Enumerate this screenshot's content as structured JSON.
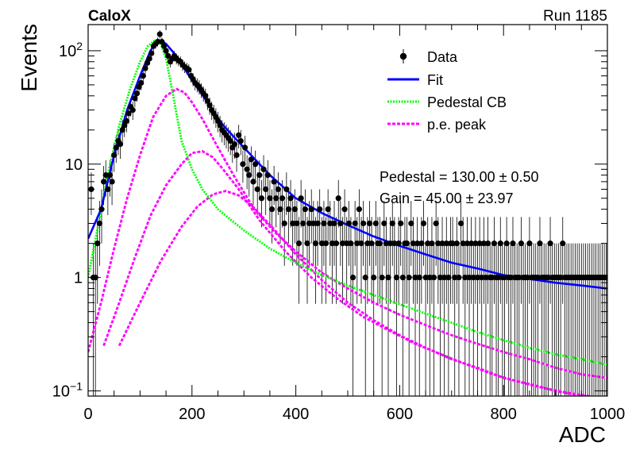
{
  "header": {
    "experiment": "CaloX",
    "run": "Run 1185"
  },
  "stats": {
    "pedestal": "Pedestal = 130.00 ± 0.50",
    "gain": "Gain = 45.00 ± 23.97"
  },
  "colors": {
    "data": "#000000",
    "fit": "#0000ff",
    "pedestal": "#00ff00",
    "pe": "#ff00ff"
  },
  "chart_data": {
    "type": "line",
    "xlabel": "ADC",
    "ylabel": "Events",
    "xlim": [
      0,
      1000
    ],
    "ylim": [
      0.09,
      170
    ],
    "yscale": "log",
    "x_ticks": [
      0,
      200,
      400,
      600,
      800,
      1000
    ],
    "y_ticks": [
      {
        "value": 0.1,
        "base": "10",
        "exp": "−1"
      },
      {
        "value": 1,
        "label": "1"
      },
      {
        "value": 10,
        "label": "10"
      },
      {
        "value": 100,
        "base": "10",
        "exp": "2"
      }
    ],
    "legend": {
      "position": "top-right",
      "entries": [
        {
          "label": "Data",
          "style": "marker"
        },
        {
          "label": "Fit",
          "style": "solid"
        },
        {
          "label": "Pedestal CB",
          "style": "dotted"
        },
        {
          "label": "p.e. peak",
          "style": "dashed"
        }
      ]
    },
    "data_points": [
      [
        6,
        6
      ],
      [
        10,
        1
      ],
      [
        14,
        1
      ],
      [
        18,
        2
      ],
      [
        22,
        3
      ],
      [
        26,
        4
      ],
      [
        30,
        7
      ],
      [
        34,
        8
      ],
      [
        38,
        6
      ],
      [
        42,
        8
      ],
      [
        46,
        7
      ],
      [
        50,
        12
      ],
      [
        54,
        14
      ],
      [
        58,
        16
      ],
      [
        62,
        15
      ],
      [
        66,
        20
      ],
      [
        70,
        22
      ],
      [
        74,
        24
      ],
      [
        78,
        28
      ],
      [
        82,
        32
      ],
      [
        86,
        30
      ],
      [
        90,
        38
      ],
      [
        94,
        42
      ],
      [
        98,
        48
      ],
      [
        102,
        52
      ],
      [
        106,
        60
      ],
      [
        110,
        70
      ],
      [
        114,
        78
      ],
      [
        118,
        85
      ],
      [
        122,
        95
      ],
      [
        126,
        110
      ],
      [
        130,
        115
      ],
      [
        134,
        120
      ],
      [
        138,
        140
      ],
      [
        142,
        120
      ],
      [
        146,
        110
      ],
      [
        150,
        100
      ],
      [
        154,
        90
      ],
      [
        158,
        80
      ],
      [
        162,
        85
      ],
      [
        166,
        90
      ],
      [
        170,
        85
      ],
      [
        174,
        82
      ],
      [
        178,
        80
      ],
      [
        182,
        75
      ],
      [
        186,
        72
      ],
      [
        190,
        70
      ],
      [
        194,
        68
      ],
      [
        198,
        60
      ],
      [
        202,
        56
      ],
      [
        206,
        52
      ],
      [
        210,
        50
      ],
      [
        214,
        48
      ],
      [
        218,
        45
      ],
      [
        222,
        42
      ],
      [
        226,
        40
      ],
      [
        230,
        36
      ],
      [
        234,
        33
      ],
      [
        238,
        30
      ],
      [
        242,
        28
      ],
      [
        246,
        26
      ],
      [
        250,
        24
      ],
      [
        254,
        22
      ],
      [
        258,
        20
      ],
      [
        262,
        19
      ],
      [
        266,
        18
      ],
      [
        270,
        17
      ],
      [
        274,
        16
      ],
      [
        278,
        14
      ],
      [
        282,
        15
      ],
      [
        286,
        12
      ],
      [
        290,
        18
      ],
      [
        294,
        16
      ],
      [
        298,
        10
      ],
      [
        302,
        14
      ],
      [
        306,
        9
      ],
      [
        310,
        8
      ],
      [
        314,
        11
      ],
      [
        318,
        7
      ],
      [
        322,
        10
      ],
      [
        326,
        6
      ],
      [
        330,
        8
      ],
      [
        334,
        5
      ],
      [
        338,
        9
      ],
      [
        342,
        6
      ],
      [
        346,
        8
      ],
      [
        350,
        5
      ],
      [
        354,
        4
      ],
      [
        358,
        7
      ],
      [
        362,
        5
      ],
      [
        366,
        6
      ],
      [
        370,
        4
      ],
      [
        374,
        5
      ],
      [
        378,
        3
      ],
      [
        382,
        6
      ],
      [
        386,
        4
      ],
      [
        390,
        5
      ],
      [
        394,
        3
      ],
      [
        398,
        4
      ],
      [
        402,
        3
      ],
      [
        406,
        2
      ],
      [
        410,
        5
      ],
      [
        414,
        3
      ],
      [
        418,
        4
      ],
      [
        422,
        2
      ],
      [
        426,
        3
      ],
      [
        430,
        4
      ],
      [
        434,
        3
      ],
      [
        438,
        2
      ],
      [
        442,
        3
      ],
      [
        446,
        4
      ],
      [
        450,
        2
      ],
      [
        454,
        3
      ],
      [
        458,
        2
      ],
      [
        462,
        4
      ],
      [
        466,
        3
      ],
      [
        470,
        2
      ],
      [
        474,
        3
      ],
      [
        478,
        2
      ],
      [
        482,
        5
      ],
      [
        486,
        3
      ],
      [
        490,
        2
      ],
      [
        494,
        4
      ],
      [
        498,
        2
      ],
      [
        502,
        3
      ],
      [
        506,
        2
      ],
      [
        510,
        1
      ],
      [
        514,
        3
      ],
      [
        518,
        2
      ],
      [
        522,
        4
      ],
      [
        526,
        2
      ],
      [
        530,
        3
      ],
      [
        534,
        1
      ],
      [
        538,
        2
      ],
      [
        542,
        3
      ],
      [
        546,
        2
      ],
      [
        550,
        1
      ],
      [
        554,
        3
      ],
      [
        558,
        2
      ],
      [
        562,
        2
      ],
      [
        566,
        1
      ],
      [
        570,
        3
      ],
      [
        574,
        2
      ],
      [
        578,
        1
      ],
      [
        582,
        2
      ],
      [
        586,
        3
      ],
      [
        590,
        2
      ],
      [
        594,
        1
      ],
      [
        598,
        2
      ],
      [
        602,
        3
      ],
      [
        606,
        1
      ],
      [
        610,
        2
      ],
      [
        614,
        2
      ],
      [
        618,
        1
      ],
      [
        622,
        3
      ],
      [
        626,
        2
      ],
      [
        630,
        1
      ],
      [
        634,
        2
      ],
      [
        638,
        1
      ],
      [
        642,
        2
      ],
      [
        646,
        3
      ],
      [
        650,
        1
      ],
      [
        654,
        2
      ],
      [
        658,
        1
      ],
      [
        662,
        2
      ],
      [
        666,
        1
      ],
      [
        670,
        3
      ],
      [
        674,
        2
      ],
      [
        678,
        1
      ],
      [
        682,
        2
      ],
      [
        686,
        1
      ],
      [
        690,
        2
      ],
      [
        694,
        1
      ],
      [
        698,
        2
      ],
      [
        702,
        2
      ],
      [
        706,
        1
      ],
      [
        710,
        2
      ],
      [
        714,
        1
      ],
      [
        718,
        3
      ],
      [
        722,
        2
      ],
      [
        726,
        1
      ],
      [
        730,
        2
      ],
      [
        734,
        1
      ],
      [
        738,
        2
      ],
      [
        742,
        1
      ],
      [
        746,
        2
      ],
      [
        750,
        1
      ],
      [
        754,
        2
      ],
      [
        758,
        1
      ],
      [
        762,
        2
      ],
      [
        766,
        1
      ],
      [
        770,
        2
      ],
      [
        774,
        1
      ],
      [
        778,
        1
      ],
      [
        782,
        2
      ],
      [
        786,
        1
      ],
      [
        790,
        1
      ],
      [
        794,
        2
      ],
      [
        798,
        1
      ],
      [
        802,
        1
      ],
      [
        806,
        2
      ],
      [
        810,
        1
      ],
      [
        814,
        1
      ],
      [
        818,
        2
      ],
      [
        822,
        1
      ],
      [
        826,
        1
      ],
      [
        830,
        1
      ],
      [
        834,
        2
      ],
      [
        838,
        1
      ],
      [
        842,
        1
      ],
      [
        846,
        1
      ],
      [
        850,
        2
      ],
      [
        854,
        1
      ],
      [
        858,
        1
      ],
      [
        862,
        1
      ],
      [
        866,
        1
      ],
      [
        870,
        2
      ],
      [
        874,
        1
      ],
      [
        878,
        1
      ],
      [
        882,
        1
      ],
      [
        886,
        1
      ],
      [
        890,
        2
      ],
      [
        894,
        1
      ],
      [
        898,
        1
      ],
      [
        902,
        1
      ],
      [
        906,
        1
      ],
      [
        910,
        1
      ],
      [
        914,
        2
      ],
      [
        918,
        1
      ],
      [
        922,
        1
      ],
      [
        926,
        1
      ],
      [
        930,
        1
      ],
      [
        934,
        1
      ],
      [
        938,
        1
      ],
      [
        942,
        1
      ],
      [
        946,
        1
      ],
      [
        950,
        1
      ],
      [
        954,
        1
      ],
      [
        958,
        1
      ],
      [
        962,
        1
      ],
      [
        966,
        1
      ],
      [
        970,
        1
      ],
      [
        974,
        1
      ],
      [
        978,
        1
      ],
      [
        982,
        1
      ],
      [
        986,
        1
      ],
      [
        990,
        1
      ],
      [
        994,
        1
      ],
      [
        998,
        1
      ]
    ],
    "series": [
      {
        "name": "Fit",
        "points": [
          [
            0,
            2.2
          ],
          [
            25,
            4
          ],
          [
            50,
            12
          ],
          [
            75,
            30
          ],
          [
            100,
            60
          ],
          [
            120,
            100
          ],
          [
            135,
            125
          ],
          [
            150,
            115
          ],
          [
            170,
            90
          ],
          [
            200,
            55
          ],
          [
            230,
            35
          ],
          [
            260,
            22
          ],
          [
            300,
            14
          ],
          [
            350,
            8
          ],
          [
            400,
            5
          ],
          [
            450,
            3.7
          ],
          [
            500,
            2.9
          ],
          [
            550,
            2.3
          ],
          [
            600,
            1.9
          ],
          [
            650,
            1.6
          ],
          [
            700,
            1.35
          ],
          [
            750,
            1.2
          ],
          [
            800,
            1.05
          ],
          [
            850,
            0.97
          ],
          [
            900,
            0.9
          ],
          [
            950,
            0.85
          ],
          [
            1000,
            0.8
          ]
        ]
      },
      {
        "name": "Pedestal CB",
        "points": [
          [
            0,
            1.0
          ],
          [
            20,
            3
          ],
          [
            40,
            9
          ],
          [
            60,
            22
          ],
          [
            80,
            45
          ],
          [
            100,
            80
          ],
          [
            115,
            110
          ],
          [
            130,
            125
          ],
          [
            140,
            115
          ],
          [
            150,
            85
          ],
          [
            160,
            50
          ],
          [
            170,
            28
          ],
          [
            180,
            16
          ],
          [
            200,
            9
          ],
          [
            220,
            6
          ],
          [
            250,
            4
          ],
          [
            300,
            2.6
          ],
          [
            350,
            1.8
          ],
          [
            400,
            1.35
          ],
          [
            450,
            1.05
          ],
          [
            500,
            0.85
          ],
          [
            550,
            0.7
          ],
          [
            600,
            0.58
          ],
          [
            650,
            0.48
          ],
          [
            700,
            0.4
          ],
          [
            750,
            0.33
          ],
          [
            800,
            0.28
          ],
          [
            850,
            0.24
          ],
          [
            900,
            0.21
          ],
          [
            950,
            0.19
          ],
          [
            1000,
            0.17
          ]
        ]
      },
      {
        "name": "p.e. peak",
        "points": [
          [
            0,
            0.22
          ],
          [
            25,
            0.6
          ],
          [
            50,
            1.8
          ],
          [
            75,
            5
          ],
          [
            100,
            12
          ],
          [
            125,
            26
          ],
          [
            150,
            40
          ],
          [
            170,
            46
          ],
          [
            185,
            43
          ],
          [
            200,
            35
          ],
          [
            220,
            25
          ],
          [
            250,
            14
          ],
          [
            280,
            8
          ],
          [
            320,
            4
          ],
          [
            360,
            2.5
          ],
          [
            400,
            1.7
          ],
          [
            450,
            1.1
          ],
          [
            500,
            0.8
          ],
          [
            550,
            0.6
          ],
          [
            600,
            0.47
          ],
          [
            650,
            0.38
          ],
          [
            700,
            0.31
          ],
          [
            750,
            0.26
          ],
          [
            800,
            0.22
          ],
          [
            850,
            0.19
          ],
          [
            900,
            0.16
          ],
          [
            950,
            0.14
          ],
          [
            1000,
            0.13
          ]
        ]
      },
      {
        "name": "p.e. peak",
        "points": [
          [
            30,
            0.25
          ],
          [
            60,
            0.6
          ],
          [
            90,
            1.5
          ],
          [
            120,
            3.5
          ],
          [
            150,
            6.5
          ],
          [
            180,
            10
          ],
          [
            200,
            12.5
          ],
          [
            220,
            13
          ],
          [
            240,
            11.5
          ],
          [
            260,
            9
          ],
          [
            290,
            6
          ],
          [
            330,
            3.2
          ],
          [
            380,
            1.7
          ],
          [
            430,
            1.0
          ],
          [
            480,
            0.65
          ],
          [
            530,
            0.45
          ],
          [
            580,
            0.34
          ],
          [
            630,
            0.26
          ],
          [
            680,
            0.21
          ],
          [
            730,
            0.17
          ],
          [
            780,
            0.14
          ],
          [
            830,
            0.12
          ],
          [
            880,
            0.105
          ],
          [
            930,
            0.095
          ],
          [
            1000,
            0.085
          ]
        ]
      },
      {
        "name": "p.e. peak",
        "points": [
          [
            60,
            0.25
          ],
          [
            100,
            0.6
          ],
          [
            140,
            1.4
          ],
          [
            180,
            2.8
          ],
          [
            210,
            4.2
          ],
          [
            240,
            5.4
          ],
          [
            265,
            5.8
          ],
          [
            290,
            5.3
          ],
          [
            320,
            4.1
          ],
          [
            360,
            2.6
          ],
          [
            400,
            1.6
          ],
          [
            450,
            0.95
          ],
          [
            500,
            0.6
          ],
          [
            550,
            0.42
          ],
          [
            600,
            0.31
          ],
          [
            650,
            0.24
          ],
          [
            700,
            0.19
          ],
          [
            750,
            0.16
          ],
          [
            800,
            0.13
          ],
          [
            850,
            0.115
          ],
          [
            900,
            0.1
          ],
          [
            950,
            0.09
          ],
          [
            1000,
            0.082
          ]
        ]
      }
    ]
  }
}
